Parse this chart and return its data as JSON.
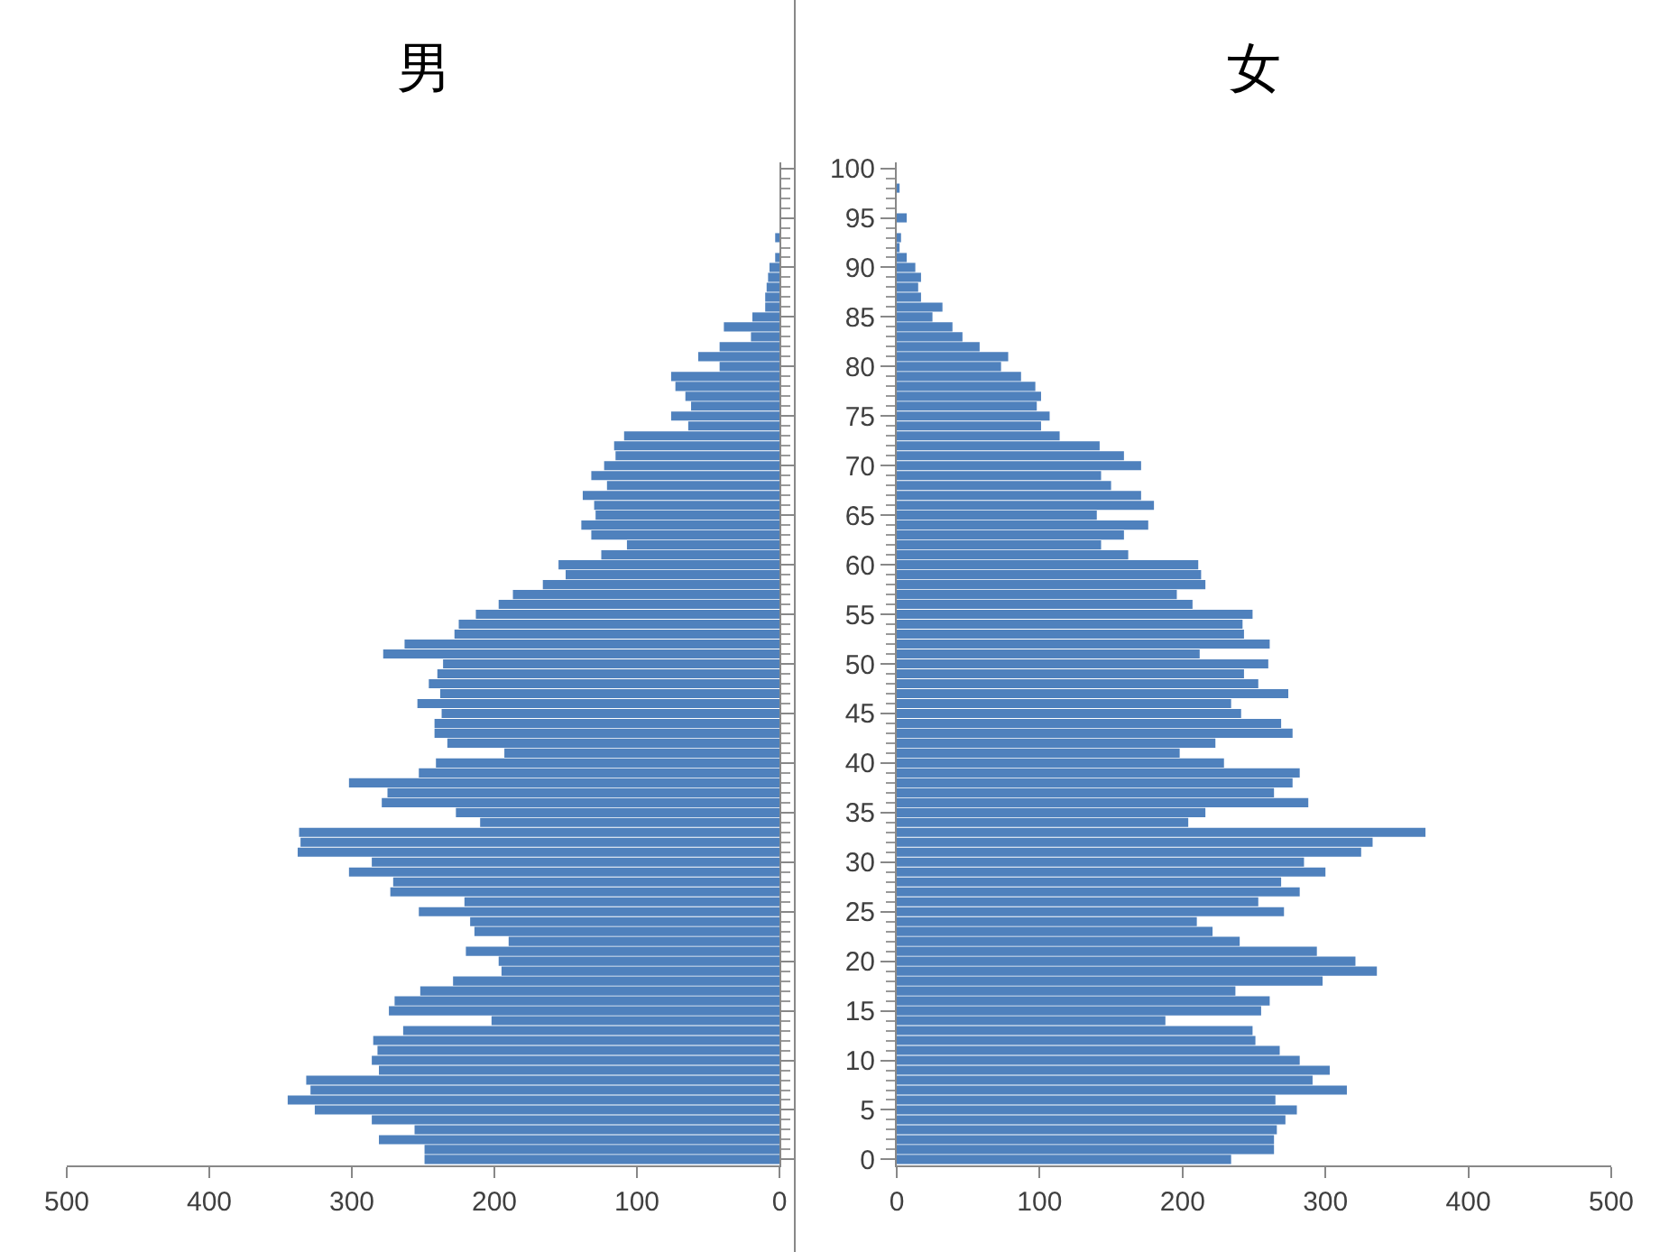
{
  "chart_data": [
    {
      "type": "bar",
      "title": "男",
      "orientation": "horizontal",
      "color": "#4f81bd",
      "tick_labels": "x",
      "categories": [
        "100",
        null,
        null,
        null,
        null,
        "95",
        null,
        null,
        null,
        null,
        "90",
        null,
        null,
        null,
        null,
        "85",
        null,
        null,
        null,
        null,
        "80",
        null,
        null,
        null,
        null,
        "75",
        null,
        null,
        null,
        null,
        "70",
        null,
        null,
        null,
        null,
        "65",
        null,
        null,
        null,
        null,
        "60",
        null,
        null,
        null,
        null,
        "55",
        null,
        null,
        null,
        null,
        "50",
        null,
        null,
        null,
        null,
        "45",
        null,
        null,
        null,
        null,
        "40",
        null,
        null,
        null,
        null,
        "35",
        null,
        null,
        null,
        null,
        "30",
        null,
        null,
        null,
        null,
        "25",
        null,
        null,
        null,
        null,
        "20",
        null,
        null,
        null,
        null,
        "15",
        null,
        null,
        null,
        null,
        "10",
        null,
        null,
        null,
        null,
        "5",
        null,
        null,
        null,
        null,
        "0"
      ],
      "values": [
        0,
        0,
        0,
        0,
        0,
        0,
        0,
        3,
        0,
        3,
        7,
        8,
        9,
        10,
        10,
        19,
        39,
        20,
        42,
        57,
        42,
        76,
        73,
        66,
        62,
        76,
        64,
        109,
        116,
        115,
        123,
        132,
        121,
        138,
        130,
        129,
        139,
        132,
        107,
        125,
        155,
        150,
        166,
        187,
        197,
        213,
        225,
        228,
        263,
        278,
        236,
        240,
        246,
        238,
        254,
        237,
        242,
        242,
        233,
        193,
        241,
        253,
        302,
        275,
        279,
        227,
        210,
        337,
        336,
        338,
        286,
        302,
        271,
        273,
        221,
        253,
        217,
        214,
        190,
        220,
        197,
        195,
        229,
        252,
        270,
        274,
        202,
        264,
        285,
        282,
        286,
        281,
        332,
        329,
        345,
        326,
        286,
        256,
        281,
        249,
        249
      ],
      "xlim": [
        500,
        0
      ],
      "xticks": [
        0,
        100,
        200,
        300,
        400,
        500
      ]
    },
    {
      "type": "bar",
      "title": "女",
      "orientation": "horizontal",
      "color": "#4f81bd",
      "categories": [
        "100",
        null,
        null,
        null,
        null,
        "95",
        null,
        null,
        null,
        null,
        "90",
        null,
        null,
        null,
        null,
        "85",
        null,
        null,
        null,
        null,
        "80",
        null,
        null,
        null,
        null,
        "75",
        null,
        null,
        null,
        null,
        "70",
        null,
        null,
        null,
        null,
        "65",
        null,
        null,
        null,
        null,
        "60",
        null,
        null,
        null,
        null,
        "55",
        null,
        null,
        null,
        null,
        "50",
        null,
        null,
        null,
        null,
        "45",
        null,
        null,
        null,
        null,
        "40",
        null,
        null,
        null,
        null,
        "35",
        null,
        null,
        null,
        null,
        "30",
        null,
        null,
        null,
        null,
        "25",
        null,
        null,
        null,
        null,
        "20",
        null,
        null,
        null,
        null,
        "15",
        null,
        null,
        null,
        null,
        "10",
        null,
        null,
        null,
        null,
        "5",
        null,
        null,
        null,
        null,
        "0"
      ],
      "values": [
        0,
        0,
        2,
        0,
        0,
        7,
        null,
        3,
        2,
        7,
        13,
        17,
        15,
        17,
        32,
        25,
        39,
        46,
        58,
        78,
        73,
        87,
        97,
        101,
        98,
        107,
        101,
        114,
        142,
        159,
        171,
        143,
        150,
        171,
        180,
        140,
        176,
        159,
        143,
        162,
        211,
        213,
        216,
        196,
        207,
        249,
        242,
        243,
        261,
        212,
        260,
        243,
        253,
        274,
        234,
        241,
        269,
        277,
        223,
        198,
        229,
        282,
        277,
        264,
        288,
        216,
        204,
        370,
        333,
        325,
        285,
        300,
        269,
        282,
        253,
        271,
        210,
        221,
        240,
        294,
        321,
        336,
        298,
        237,
        261,
        255,
        188,
        249,
        251,
        268,
        282,
        303,
        291,
        315,
        265,
        280,
        272,
        266,
        264,
        264,
        234
      ],
      "xlim": [
        0,
        500
      ],
      "xticks": [
        0,
        100,
        200,
        300,
        400,
        500
      ]
    }
  ]
}
